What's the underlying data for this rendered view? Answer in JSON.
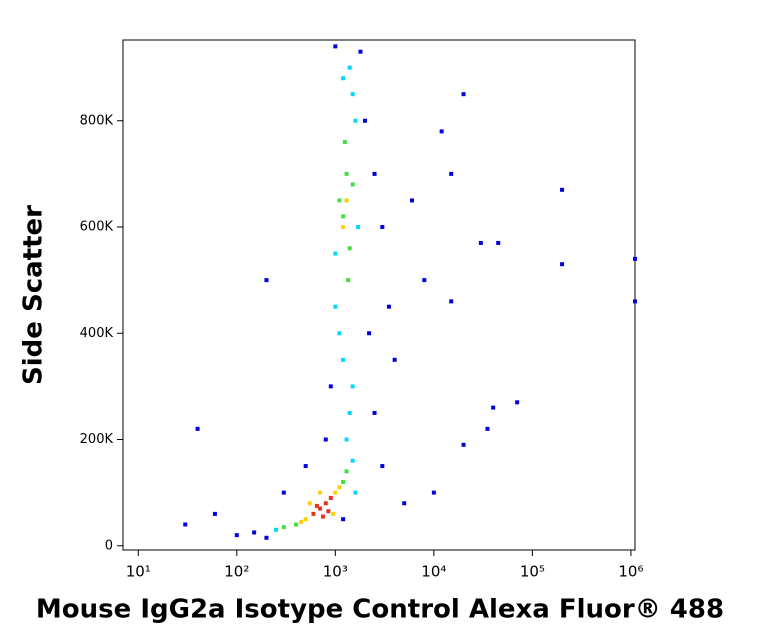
{
  "chart_data": {
    "type": "scatter",
    "x_label": "Mouse IgG2a Isotype Control Alexa Fluor® 488",
    "y_label": "Side Scatter",
    "xscale": "log",
    "xlim": [
      7,
      1100000
    ],
    "ylim": [
      -8000,
      952000
    ],
    "xticks": [
      {
        "value": 10,
        "label": "10¹"
      },
      {
        "value": 100,
        "label": "10²"
      },
      {
        "value": 1000,
        "label": "10³"
      },
      {
        "value": 10000,
        "label": "10⁴"
      },
      {
        "value": 100000,
        "label": "10⁵"
      },
      {
        "value": 1000000,
        "label": "10⁶"
      }
    ],
    "yticks": [
      0,
      {
        "value": 200000,
        "label": "200K"
      },
      {
        "value": 400000,
        "label": "400K"
      },
      {
        "value": 600000,
        "label": "600K"
      },
      {
        "value": 800000,
        "label": "800K"
      }
    ],
    "series": [
      {
        "color": "#0000e0",
        "x": [
          100,
          150,
          200,
          2000,
          2500,
          3000,
          900,
          800,
          2200,
          1800,
          1000,
          500,
          300,
          3000,
          5000,
          20000,
          15000,
          30000,
          45000,
          200000,
          200000,
          1100000,
          1100000,
          15000,
          20000,
          70000,
          40000,
          35000,
          40,
          200,
          30,
          60,
          4000,
          8000,
          10000,
          1200,
          2500,
          3500,
          6000,
          12000
        ],
        "values": [
          20000,
          25000,
          15000,
          800000,
          700000,
          600000,
          300000,
          200000,
          400000,
          930000,
          940000,
          150000,
          100000,
          150000,
          80000,
          850000,
          700000,
          570000,
          570000,
          670000,
          530000,
          540000,
          460000,
          460000,
          190000,
          270000,
          260000,
          220000,
          220000,
          500000,
          40000,
          60000,
          350000,
          500000,
          100000,
          50000,
          250000,
          450000,
          650000,
          780000
        ]
      },
      {
        "color": "#00d8ff",
        "x": [
          1000,
          1600,
          1500,
          1100,
          1500,
          1400,
          1300,
          1200,
          1000,
          1700,
          250,
          1500,
          1600,
          1400,
          1200
        ],
        "values": [
          450000,
          800000,
          850000,
          400000,
          300000,
          250000,
          200000,
          350000,
          550000,
          600000,
          30000,
          160000,
          100000,
          900000,
          880000
        ]
      },
      {
        "color": "#40e040",
        "x": [
          1300,
          1200,
          1400,
          1250,
          1350,
          400,
          1200,
          1100,
          1500,
          300,
          1300
        ],
        "values": [
          700000,
          620000,
          560000,
          760000,
          500000,
          40000,
          120000,
          650000,
          680000,
          35000,
          140000
        ]
      },
      {
        "color": "#ffd000",
        "x": [
          500,
          1000,
          550,
          950,
          700,
          1100,
          450,
          1300,
          1200
        ],
        "values": [
          50000,
          100000,
          80000,
          60000,
          100000,
          110000,
          45000,
          650000,
          600000
        ]
      },
      {
        "color": "#e8331b",
        "x": [
          600,
          700,
          800,
          750,
          900,
          650,
          850
        ],
        "values": [
          60000,
          70000,
          80000,
          55000,
          90000,
          75000,
          65000
        ]
      }
    ]
  }
}
